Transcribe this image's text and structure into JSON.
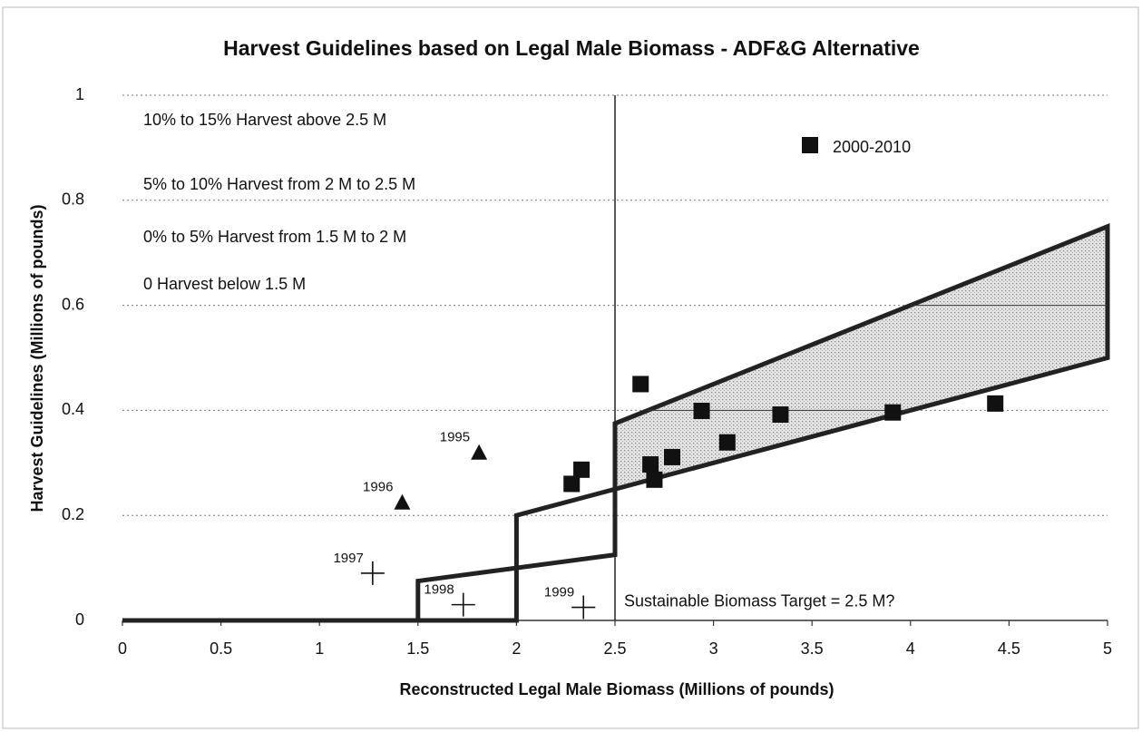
{
  "chart_data": {
    "type": "scatter",
    "title": "Harvest Guidelines based on Legal Male Biomass - ADF&G Alternative",
    "xlabel": "Reconstructed Legal Male Biomass (Millions of pounds)",
    "ylabel": "Harvest Guidelines (Millions of pounds)",
    "xlim": [
      0,
      5
    ],
    "ylim": [
      0,
      1
    ],
    "xticks": [
      0,
      0.5,
      1,
      1.5,
      2,
      2.5,
      3,
      3.5,
      4,
      4.5,
      5
    ],
    "yticks": [
      0,
      0.2,
      0.4,
      0.6,
      0.8,
      1
    ],
    "grid": true,
    "series": [
      {
        "name": "2000-2010",
        "marker": "square",
        "color": "#111111",
        "x": [
          2.63,
          2.33,
          2.28,
          2.68,
          2.7,
          2.79,
          2.94,
          3.07,
          3.34,
          3.91,
          4.43
        ],
        "values": [
          0.45,
          0.287,
          0.26,
          0.297,
          0.268,
          0.311,
          0.399,
          0.339,
          0.392,
          0.396,
          0.413
        ]
      }
    ],
    "labeled_points": [
      {
        "label": "1995",
        "marker": "triangle",
        "x": 1.81,
        "y": 0.32
      },
      {
        "label": "1996",
        "marker": "triangle",
        "x": 1.42,
        "y": 0.225
      },
      {
        "label": "1997",
        "marker": "cross",
        "x": 1.27,
        "y": 0.09
      },
      {
        "label": "1998",
        "marker": "cross",
        "x": 1.73,
        "y": 0.03
      },
      {
        "label": "1999",
        "marker": "cross",
        "x": 2.34,
        "y": 0.025
      }
    ],
    "baseline": {
      "x": [
        0,
        1.5
      ],
      "values": [
        0,
        0
      ]
    },
    "bands": [
      {
        "x": [
          1.5,
          2
        ],
        "upper": [
          0.075,
          0.1
        ],
        "lower": [
          0,
          0
        ],
        "shaded": false
      },
      {
        "x": [
          2,
          2.5
        ],
        "upper": [
          0.2,
          0.25
        ],
        "lower": [
          0.1,
          0.125
        ],
        "shaded": false
      },
      {
        "x": [
          2.5,
          5
        ],
        "upper": [
          0.375,
          0.75
        ],
        "lower": [
          0.25,
          0.5
        ],
        "shaded": true
      }
    ],
    "target_line": {
      "x": 2.5,
      "label": "Sustainable Biomass Target = 2.5 M?"
    },
    "annotations": [
      "10% to 15% Harvest above 2.5 M",
      "5% to 10% Harvest from 2 M to 2.5 M",
      "0% to 5% Harvest from 1.5 M to 2 M",
      "0 Harvest below 1.5 M"
    ]
  }
}
